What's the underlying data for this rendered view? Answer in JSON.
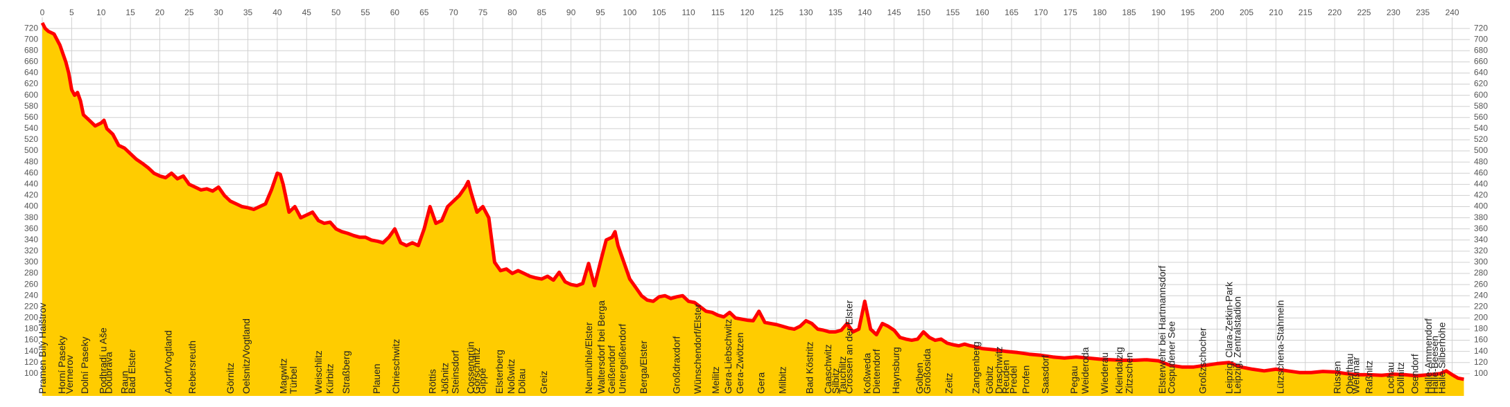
{
  "chart_data": {
    "type": "area",
    "x": [
      0,
      0.5,
      1,
      2,
      3,
      4,
      4.5,
      5,
      5.5,
      6,
      6.5,
      7,
      8,
      9,
      10,
      10.5,
      11,
      12,
      13,
      14,
      15,
      16,
      17,
      18,
      19,
      20,
      21,
      22,
      23,
      24,
      25,
      26,
      27,
      28,
      29,
      30,
      31,
      32,
      33,
      34,
      35,
      36,
      37,
      38,
      39,
      40,
      40.5,
      41,
      42,
      43,
      44,
      45,
      46,
      47,
      48,
      49,
      50,
      51,
      52,
      53,
      54,
      55,
      56,
      57,
      58,
      59,
      60,
      61,
      62,
      63,
      64,
      65,
      66,
      67,
      68,
      69,
      70,
      71,
      72,
      72.5,
      73,
      74,
      75,
      76,
      77,
      78,
      79,
      80,
      81,
      82,
      83,
      84,
      85,
      86,
      87,
      88,
      89,
      90,
      91,
      92,
      93,
      94,
      95,
      96,
      97,
      97.5,
      98,
      99,
      100,
      101,
      102,
      103,
      104,
      105,
      106,
      107,
      108,
      109,
      110,
      111,
      112,
      113,
      114,
      115,
      116,
      117,
      118,
      119,
      120,
      121,
      122,
      123,
      124,
      125,
      126,
      127,
      128,
      129,
      130,
      131,
      132,
      133,
      134,
      135,
      136,
      137,
      138,
      139,
      140,
      141,
      142,
      143,
      144,
      145,
      146,
      147,
      148,
      149,
      150,
      151,
      152,
      153,
      154,
      155,
      156,
      157,
      158,
      159,
      160,
      162,
      164,
      166,
      168,
      170,
      172,
      174,
      176,
      178,
      180,
      182,
      184,
      186,
      188,
      190,
      192,
      194,
      196,
      198,
      200,
      202,
      204,
      206,
      208,
      210,
      212,
      214,
      216,
      218,
      220,
      222,
      224,
      226,
      228,
      230,
      232,
      234,
      236,
      238,
      239,
      240,
      241,
      242
    ],
    "values": [
      730,
      720,
      715,
      710,
      690,
      660,
      640,
      610,
      600,
      605,
      590,
      565,
      555,
      545,
      550,
      555,
      540,
      530,
      510,
      505,
      495,
      485,
      478,
      470,
      460,
      455,
      452,
      460,
      450,
      455,
      440,
      435,
      430,
      432,
      428,
      435,
      420,
      410,
      405,
      400,
      398,
      395,
      400,
      405,
      430,
      460,
      458,
      440,
      390,
      400,
      380,
      385,
      390,
      375,
      370,
      372,
      360,
      355,
      352,
      348,
      345,
      345,
      340,
      338,
      335,
      345,
      360,
      335,
      330,
      335,
      330,
      360,
      400,
      370,
      375,
      400,
      410,
      420,
      435,
      445,
      425,
      390,
      400,
      380,
      300,
      285,
      288,
      280,
      285,
      280,
      275,
      272,
      270,
      275,
      268,
      282,
      265,
      260,
      258,
      262,
      298,
      258,
      300,
      340,
      345,
      355,
      330,
      300,
      270,
      255,
      240,
      232,
      230,
      238,
      240,
      235,
      238,
      240,
      230,
      228,
      220,
      212,
      210,
      205,
      202,
      210,
      200,
      198,
      196,
      195,
      212,
      192,
      190,
      188,
      185,
      182,
      180,
      185,
      195,
      190,
      180,
      178,
      175,
      175,
      178,
      190,
      175,
      180,
      230,
      180,
      170,
      190,
      185,
      178,
      165,
      162,
      160,
      162,
      175,
      165,
      160,
      162,
      155,
      152,
      150,
      153,
      150,
      148,
      145,
      143,
      140,
      138,
      135,
      133,
      130,
      128,
      130,
      128,
      126,
      125,
      124,
      124,
      125,
      123,
      115,
      112,
      112,
      115,
      118,
      120,
      112,
      108,
      105,
      108,
      105,
      102,
      102,
      104,
      103,
      100,
      98,
      98,
      97,
      99,
      98,
      96,
      98,
      100,
      105,
      98,
      92,
      90
    ],
    "fill_color": "#ffcc00",
    "line_color": "#ff0000",
    "xlim": [
      0,
      243
    ],
    "ylim": [
      60,
      740
    ],
    "xticks": [
      0,
      5,
      10,
      15,
      20,
      25,
      30,
      35,
      40,
      45,
      50,
      55,
      60,
      65,
      70,
      75,
      80,
      85,
      90,
      95,
      100,
      105,
      110,
      115,
      120,
      125,
      130,
      135,
      140,
      145,
      150,
      155,
      160,
      165,
      170,
      175,
      180,
      185,
      190,
      195,
      200,
      205,
      210,
      215,
      220,
      225,
      230,
      235,
      240
    ],
    "yticks": [
      100,
      120,
      140,
      160,
      180,
      200,
      220,
      240,
      260,
      280,
      300,
      320,
      340,
      360,
      380,
      400,
      420,
      440,
      460,
      480,
      500,
      520,
      540,
      560,
      580,
      600,
      620,
      640,
      660,
      680,
      700,
      720
    ],
    "grid": true,
    "places": [
      {
        "x": 0,
        "label": "Pramen Bílý Halštrov"
      },
      {
        "x": 3.3,
        "label": "Horní Paseky"
      },
      {
        "x": 4.6,
        "label": "Vernerov"
      },
      {
        "x": 7.2,
        "label": "Dolní Paseky"
      },
      {
        "x": 10.3,
        "label": "Podhradí u Aše"
      },
      {
        "x": 11.3,
        "label": "Doubrava"
      },
      {
        "x": 14,
        "label": "Raun"
      },
      {
        "x": 15.2,
        "label": "Bad Elster"
      },
      {
        "x": 21.4,
        "label": "Adorf/Vogtland"
      },
      {
        "x": 25.5,
        "label": "Rebersreuth"
      },
      {
        "x": 32,
        "label": "Görnitz"
      },
      {
        "x": 34.7,
        "label": "Oelsnitz/Vogtland"
      },
      {
        "x": 41,
        "label": "Magwitz"
      },
      {
        "x": 42.7,
        "label": "Türbel"
      },
      {
        "x": 47,
        "label": "Weischlitz"
      },
      {
        "x": 48.9,
        "label": "Kürbitz"
      },
      {
        "x": 51.7,
        "label": "Straßberg"
      },
      {
        "x": 56.9,
        "label": "Plauen"
      },
      {
        "x": 60.2,
        "label": "Chrieschwitz"
      },
      {
        "x": 66.4,
        "label": "Röttis"
      },
      {
        "x": 68.5,
        "label": "Jößnitz"
      },
      {
        "x": 70.3,
        "label": "Steinsdorf"
      },
      {
        "x": 72.9,
        "label": "Cossengrün"
      },
      {
        "x": 73.9,
        "label": "Görschnitz"
      },
      {
        "x": 74.9,
        "label": "Gippe"
      },
      {
        "x": 77.8,
        "label": "Elsterberg"
      },
      {
        "x": 79.8,
        "label": "Noßwitz"
      },
      {
        "x": 81.6,
        "label": "Dölau"
      },
      {
        "x": 85.3,
        "label": "Greiz"
      },
      {
        "x": 93,
        "label": "Neumühle/Elster"
      },
      {
        "x": 95.1,
        "label": "Waltersdorf bei Berga"
      },
      {
        "x": 96.9,
        "label": "Geißendorf"
      },
      {
        "x": 98.7,
        "label": "Untergeißendorf"
      },
      {
        "x": 102.3,
        "label": "Berga/Elster"
      },
      {
        "x": 107.9,
        "label": "Großdraxdorf"
      },
      {
        "x": 111.5,
        "label": "Wünschendorf/Elster"
      },
      {
        "x": 114.6,
        "label": "Meilitz"
      },
      {
        "x": 116.7,
        "label": "Gera-Liebschwitz"
      },
      {
        "x": 118.7,
        "label": "Gera-Zwötzen"
      },
      {
        "x": 122.3,
        "label": "Gera"
      },
      {
        "x": 126,
        "label": "Milbitz"
      },
      {
        "x": 130.6,
        "label": "Bad Köstritz"
      },
      {
        "x": 133.7,
        "label": "Caaschwitz"
      },
      {
        "x": 135,
        "label": "Silbitz"
      },
      {
        "x": 136.2,
        "label": "Tauchlitz"
      },
      {
        "x": 137.3,
        "label": "Crossen an der Elster"
      },
      {
        "x": 140.4,
        "label": "Koßweda"
      },
      {
        "x": 142,
        "label": "Dietendorf"
      },
      {
        "x": 145.3,
        "label": "Haynsburg"
      },
      {
        "x": 149.3,
        "label": "Golben"
      },
      {
        "x": 150.6,
        "label": "Großosida"
      },
      {
        "x": 154.3,
        "label": "Zeitz"
      },
      {
        "x": 158.9,
        "label": "Zangenberg"
      },
      {
        "x": 161.2,
        "label": "Göbitz"
      },
      {
        "x": 162.8,
        "label": "Draschwitz"
      },
      {
        "x": 164,
        "label": "Reuden"
      },
      {
        "x": 165.3,
        "label": "Predel"
      },
      {
        "x": 167.4,
        "label": "Profen"
      },
      {
        "x": 170.7,
        "label": "Saasdorf"
      },
      {
        "x": 175.6,
        "label": "Pegau"
      },
      {
        "x": 177.5,
        "label": "Weideroda"
      },
      {
        "x": 180.8,
        "label": "Wiederau"
      },
      {
        "x": 183.3,
        "label": "Kleindalzig"
      },
      {
        "x": 185,
        "label": "Zitzschen"
      },
      {
        "x": 190.6,
        "label": "Elsterwehr bei Hartmannsdorf"
      },
      {
        "x": 192.2,
        "label": "Cospudener See"
      },
      {
        "x": 197.5,
        "label": "Großzschocher"
      },
      {
        "x": 202,
        "label": "Leipzig, Clara-Zetkin-Park"
      },
      {
        "x": 203.4,
        "label": "Leipzig, Zentralstadion"
      },
      {
        "x": 210.7,
        "label": "Lützschena-Stahmeln"
      },
      {
        "x": 220.4,
        "label": "Rüssen"
      },
      {
        "x": 222.5,
        "label": "Oberthau"
      },
      {
        "x": 223.6,
        "label": "Weßmar"
      },
      {
        "x": 225.8,
        "label": "Raßnitz"
      },
      {
        "x": 229.5,
        "label": "Lochau"
      },
      {
        "x": 231.2,
        "label": "Döllnitz"
      },
      {
        "x": 233.6,
        "label": "Osendorf"
      },
      {
        "x": 235.9,
        "label": "Halle-Ammendorf"
      },
      {
        "x": 237,
        "label": "Halle-Beesen"
      },
      {
        "x": 238.2,
        "label": "Halle-Silberhöhe"
      }
    ]
  }
}
